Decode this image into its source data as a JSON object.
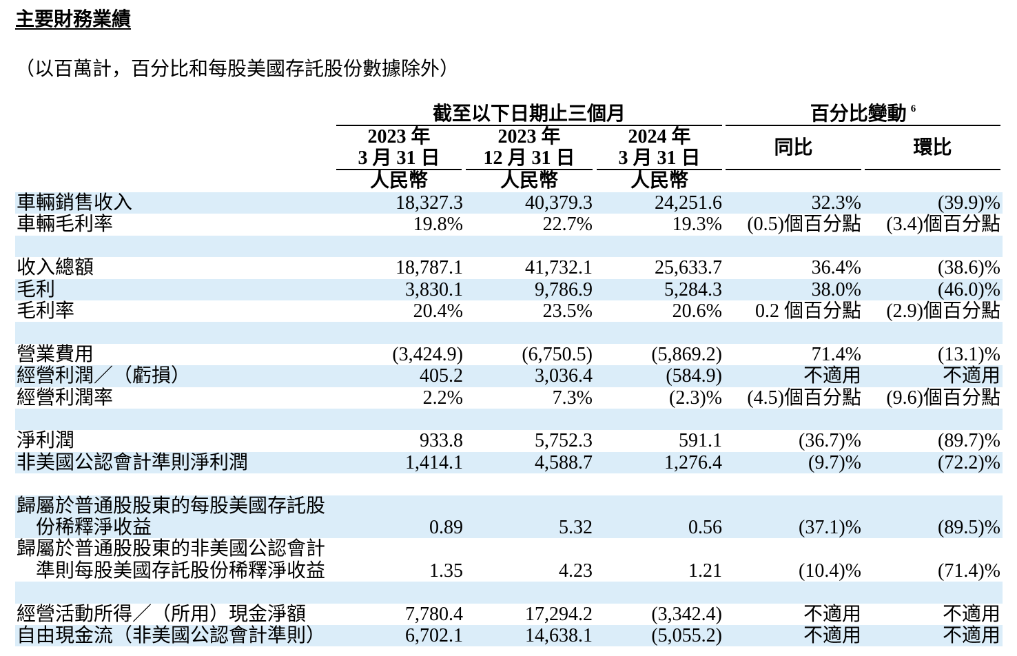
{
  "title": "主要財務業績",
  "subtitle": "（以百萬計，百分比和每股美國存託股份數據除外）",
  "header": {
    "period_group": "截至以下日期止三個月",
    "change_group": "百分比變動",
    "change_footnote": "6",
    "period_columns": [
      {
        "year": "2023 年",
        "date": "3 月 31 日",
        "currency": "人民幣"
      },
      {
        "year": "2023 年",
        "date": "12 月 31 日",
        "currency": "人民幣"
      },
      {
        "year": "2024 年",
        "date": "3 月 31 日",
        "currency": "人民幣"
      }
    ],
    "change_columns": [
      "同比",
      "環比"
    ]
  },
  "sections": [
    {
      "rows": [
        {
          "label": [
            "車輛銷售收入"
          ],
          "values": [
            "18,327.3",
            "40,379.3",
            "24,251.6",
            "32.3%",
            "(39.9)%"
          ]
        },
        {
          "label": [
            "車輛毛利率"
          ],
          "values": [
            "19.8%",
            "22.7%",
            "19.3%",
            "(0.5)個百分點",
            "(3.4)個百分點"
          ]
        }
      ]
    },
    {
      "rows": [
        {
          "label": [
            "收入總額"
          ],
          "values": [
            "18,787.1",
            "41,732.1",
            "25,633.7",
            "36.4%",
            "(38.6)%"
          ]
        },
        {
          "label": [
            "毛利"
          ],
          "values": [
            "3,830.1",
            "9,786.9",
            "5,284.3",
            "38.0%",
            "(46.0)%"
          ]
        },
        {
          "label": [
            "毛利率"
          ],
          "values": [
            "20.4%",
            "23.5%",
            "20.6%",
            "0.2 個百分點",
            "(2.9)個百分點"
          ]
        }
      ]
    },
    {
      "rows": [
        {
          "label": [
            "營業費用"
          ],
          "values": [
            "(3,424.9)",
            "(6,750.5)",
            "(5,869.2)",
            "71.4%",
            "(13.1)%"
          ]
        },
        {
          "label": [
            "經營利潤／（虧損）"
          ],
          "values": [
            "405.2",
            "3,036.4",
            "(584.9)",
            "不適用",
            "不適用"
          ]
        },
        {
          "label": [
            "經營利潤率"
          ],
          "values": [
            "2.2%",
            "7.3%",
            "(2.3)%",
            "(4.5)個百分點",
            "(9.6)個百分點"
          ]
        }
      ]
    },
    {
      "rows": [
        {
          "label": [
            "淨利潤"
          ],
          "values": [
            "933.8",
            "5,752.3",
            "591.1",
            "(36.7)%",
            "(89.7)%"
          ]
        },
        {
          "label": [
            "非美國公認會計準則淨利潤"
          ],
          "values": [
            "1,414.1",
            "4,588.7",
            "1,276.4",
            "(9.7)%",
            "(72.2)%"
          ]
        }
      ]
    },
    {
      "rows": [
        {
          "label": [
            "歸屬於普通股股東的每股美國存託股",
            "份稀釋淨收益"
          ],
          "values": [
            "0.89",
            "5.32",
            "0.56",
            "(37.1)%",
            "(89.5)%"
          ]
        },
        {
          "label": [
            "歸屬於普通股股東的非美國公認會計",
            "準則每股美國存託股份稀釋淨收益"
          ],
          "values": [
            "1.35",
            "4.23",
            "1.21",
            "(10.4)%",
            "(71.4)%"
          ]
        }
      ]
    },
    {
      "rows": [
        {
          "label": [
            "經營活動所得／（所用）現金淨額"
          ],
          "values": [
            "7,780.4",
            "17,294.2",
            "(3,342.4)",
            "不適用",
            "不適用"
          ]
        },
        {
          "label": [
            "自由現金流（非美國公認會計準則）"
          ],
          "values": [
            "6,702.1",
            "14,638.1",
            "(5,055.2)",
            "不適用",
            "不適用"
          ]
        }
      ]
    }
  ],
  "colors": {
    "row_shading": "#dbedf9",
    "text": "#000000",
    "rule": "#000000"
  }
}
